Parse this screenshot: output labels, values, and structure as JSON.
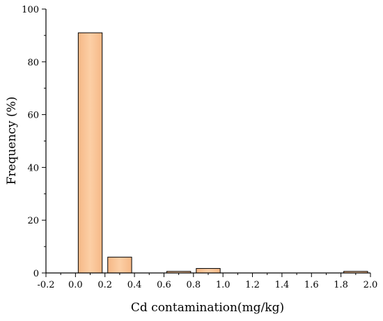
{
  "chart_data": {
    "type": "bar",
    "title": "",
    "xlabel": "Cd contamination(mg/kg)",
    "ylabel": "Frequency (%)",
    "xlim": [
      -0.2,
      2.0
    ],
    "ylim": [
      0,
      100
    ],
    "xticks": [
      "-0.2",
      "0.0",
      "0.2",
      "0.4",
      "0.6",
      "0.8",
      "1.0",
      "1.2",
      "1.4",
      "1.6",
      "1.8",
      "2.0"
    ],
    "yticks": [
      "0",
      "20",
      "40",
      "60",
      "80",
      "100"
    ],
    "bin_width": 0.2,
    "bars": [
      {
        "x_start": 0.0,
        "x_end": 0.2,
        "value": 91
      },
      {
        "x_start": 0.2,
        "x_end": 0.4,
        "value": 6
      },
      {
        "x_start": 0.6,
        "x_end": 0.8,
        "value": 0.6
      },
      {
        "x_start": 0.8,
        "x_end": 1.0,
        "value": 1.7
      },
      {
        "x_start": 1.8,
        "x_end": 2.0,
        "value": 0.6
      }
    ],
    "bar_color": "#f9c89c",
    "bar_edge_color": "#000000",
    "grid": false,
    "legend": "none"
  }
}
